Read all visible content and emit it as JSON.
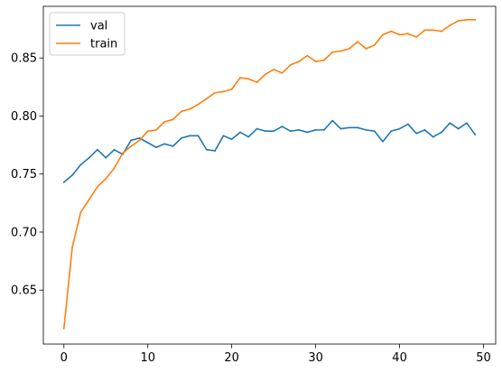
{
  "chart_data": {
    "type": "line",
    "title": "",
    "xlabel": "",
    "ylabel": "",
    "x": [
      0,
      1,
      2,
      3,
      4,
      5,
      6,
      7,
      8,
      9,
      10,
      11,
      12,
      13,
      14,
      15,
      16,
      17,
      18,
      19,
      20,
      21,
      22,
      23,
      24,
      25,
      26,
      27,
      28,
      29,
      30,
      31,
      32,
      33,
      34,
      35,
      36,
      37,
      38,
      39,
      40,
      41,
      42,
      43,
      44,
      45,
      46,
      47,
      48,
      49
    ],
    "xlim": [
      -2.45,
      51.45
    ],
    "ylim": [
      0.6035,
      0.8945
    ],
    "xticks": [
      0,
      10,
      20,
      30,
      40,
      50
    ],
    "yticks": [
      0.65,
      0.7,
      0.75,
      0.8,
      0.85
    ],
    "xtick_labels": [
      "0",
      "10",
      "20",
      "30",
      "40",
      "50"
    ],
    "ytick_labels": [
      "0.65",
      "0.70",
      "0.75",
      "0.80",
      "0.85"
    ],
    "grid": false,
    "legend_position": "top-left",
    "series": [
      {
        "name": "val",
        "color": "#1f77b4",
        "values": [
          0.743,
          0.749,
          0.758,
          0.764,
          0.771,
          0.764,
          0.771,
          0.767,
          0.779,
          0.781,
          0.777,
          0.773,
          0.776,
          0.774,
          0.781,
          0.783,
          0.783,
          0.771,
          0.77,
          0.783,
          0.78,
          0.786,
          0.782,
          0.789,
          0.787,
          0.787,
          0.791,
          0.787,
          0.788,
          0.786,
          0.788,
          0.788,
          0.796,
          0.789,
          0.79,
          0.79,
          0.788,
          0.787,
          0.778,
          0.787,
          0.789,
          0.793,
          0.785,
          0.788,
          0.782,
          0.786,
          0.794,
          0.789,
          0.794,
          0.784
        ]
      },
      {
        "name": "train",
        "color": "#ff7f0e",
        "values": [
          0.617,
          0.687,
          0.717,
          0.728,
          0.739,
          0.746,
          0.755,
          0.768,
          0.774,
          0.779,
          0.787,
          0.788,
          0.795,
          0.797,
          0.804,
          0.806,
          0.81,
          0.815,
          0.82,
          0.821,
          0.823,
          0.833,
          0.832,
          0.829,
          0.836,
          0.84,
          0.837,
          0.844,
          0.847,
          0.852,
          0.847,
          0.848,
          0.855,
          0.856,
          0.858,
          0.864,
          0.858,
          0.861,
          0.87,
          0.873,
          0.87,
          0.871,
          0.868,
          0.874,
          0.874,
          0.873,
          0.878,
          0.882,
          0.883,
          0.883
        ]
      }
    ]
  }
}
